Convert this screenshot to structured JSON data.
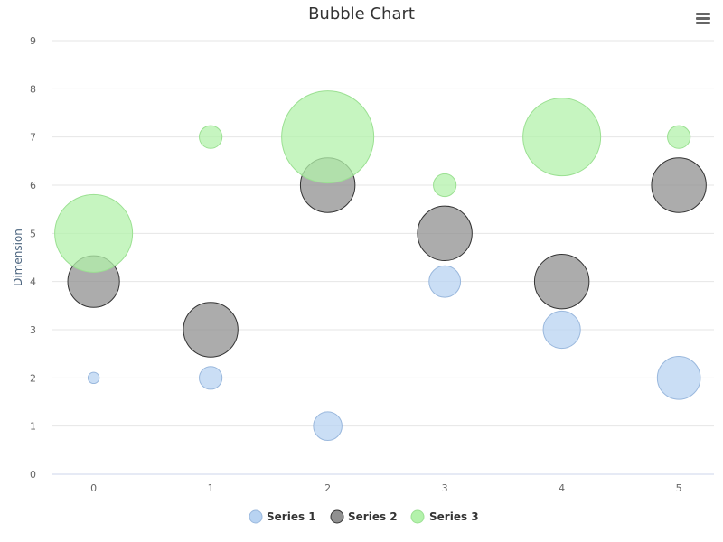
{
  "chart_data": {
    "type": "bubble",
    "title": "Bubble Chart",
    "xlabel": "",
    "ylabel": "Dimension",
    "x_ticks": [
      "0",
      "1",
      "2",
      "3",
      "4",
      "5"
    ],
    "y_ticks": [
      "0",
      "1",
      "2",
      "3",
      "4",
      "5",
      "6",
      "7",
      "8",
      "9"
    ],
    "xlim": [
      -0.36,
      5.3
    ],
    "ylim": [
      0,
      9
    ],
    "grid": "horizontal",
    "legend_position": "bottom",
    "series": [
      {
        "name": "Series 1",
        "color": "#b8d3f2",
        "stroke": "#9ab8dd",
        "points": [
          {
            "x": 0,
            "y": 2,
            "z": 1
          },
          {
            "x": 1,
            "y": 2,
            "z": 3
          },
          {
            "x": 2,
            "y": 1,
            "z": 4
          },
          {
            "x": 3,
            "y": 4,
            "z": 4.5
          },
          {
            "x": 4,
            "y": 3,
            "z": 5.5
          },
          {
            "x": 5,
            "y": 2,
            "z": 6.5
          }
        ]
      },
      {
        "name": "Series 2",
        "color": "#909090",
        "stroke": "#333333",
        "points": [
          {
            "x": 0,
            "y": 4,
            "z": 8
          },
          {
            "x": 1,
            "y": 3,
            "z": 8.5
          },
          {
            "x": 2,
            "y": 6,
            "z": 8.5
          },
          {
            "x": 3,
            "y": 5,
            "z": 8.5
          },
          {
            "x": 4,
            "y": 4,
            "z": 8.5
          },
          {
            "x": 5,
            "y": 6,
            "z": 8.5
          }
        ]
      },
      {
        "name": "Series 3",
        "color": "#b3f2ab",
        "stroke": "#9be092",
        "points": [
          {
            "x": 0,
            "y": 5,
            "z": 12.5
          },
          {
            "x": 1,
            "y": 7,
            "z": 3
          },
          {
            "x": 2,
            "y": 7,
            "z": 15
          },
          {
            "x": 3,
            "y": 6,
            "z": 3
          },
          {
            "x": 4,
            "y": 7,
            "z": 12.5
          },
          {
            "x": 5,
            "y": 7,
            "z": 3
          }
        ]
      }
    ]
  },
  "colors": {
    "gridline": "#e6e6e6",
    "axis_line": "#ccd6eb"
  },
  "icons": {
    "menu": "hamburger-menu-icon"
  }
}
